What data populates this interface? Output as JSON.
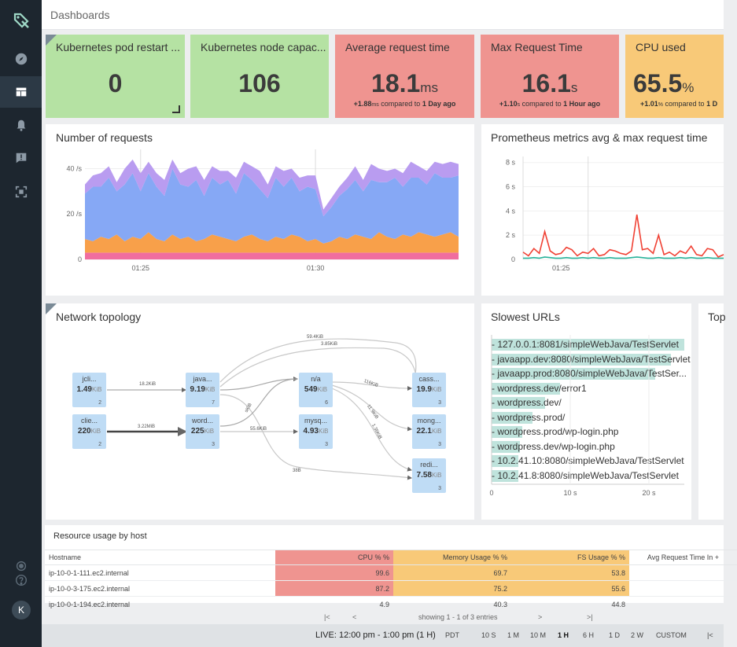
{
  "header": {
    "title": "Dashboards"
  },
  "sidebar": {
    "avatar_initial": "K"
  },
  "stats": [
    {
      "title": "Kubernetes pod restart ...",
      "value": "0",
      "unit": "",
      "delta": "",
      "delta_unit": "",
      "compare": "",
      "color": "#b5e2a3"
    },
    {
      "title": "Kubernetes node capac...",
      "value": "106",
      "unit": "",
      "delta": "",
      "delta_unit": "",
      "compare": "",
      "color": "#b5e2a3"
    },
    {
      "title": "Average request time",
      "value": "18.1",
      "unit": "ms",
      "delta": "+1.88",
      "delta_unit": "ms",
      "compare": "1 Day ago",
      "color": "#ef9490"
    },
    {
      "title": "Max Request Time",
      "value": "16.1",
      "unit": "s",
      "delta": "+1.10",
      "delta_unit": "s",
      "compare": "1 Hour ago",
      "color": "#ef9490"
    },
    {
      "title": "CPU used",
      "value": "65.5",
      "unit": "%",
      "delta": "+1.01",
      "delta_unit": "%",
      "compare": "1 D",
      "color": "#f8c978"
    }
  ],
  "compared_label": "compared to",
  "panels": {
    "requests": "Number of requests",
    "prometheus": "Prometheus metrics avg & max request time",
    "topology": "Network topology",
    "slowest": "Slowest URLs",
    "top": "Top",
    "resource": "Resource usage by host"
  },
  "chart_data": [
    {
      "type": "area",
      "title": "Number of requests",
      "x_ticks": [
        "01:25",
        "01:30"
      ],
      "y_ticks": [
        "40 /s",
        "20 /s",
        "0"
      ],
      "ylim": [
        0,
        45
      ],
      "series": [
        {
          "name": "pink",
          "color": "#f06d9f",
          "values": [
            3,
            3,
            3,
            3,
            3,
            3,
            3,
            3,
            3,
            3,
            3,
            3,
            3,
            3,
            3,
            3,
            3,
            3,
            3,
            3,
            3,
            3,
            3,
            3,
            3,
            3,
            3,
            3,
            3,
            3,
            3,
            3,
            3,
            3,
            3,
            3,
            3,
            3,
            3,
            3,
            3,
            3,
            3,
            3,
            3,
            3,
            3,
            3
          ]
        },
        {
          "name": "orange",
          "color": "#f8a04a",
          "values": [
            6,
            5,
            7,
            6,
            8,
            5,
            7,
            6,
            9,
            6,
            5,
            8,
            6,
            7,
            5,
            6,
            8,
            7,
            6,
            5,
            7,
            8,
            6,
            5,
            7,
            6,
            8,
            7,
            5,
            6,
            4,
            5,
            7,
            6,
            8,
            7,
            6,
            9,
            7,
            6,
            8,
            7,
            9,
            8,
            7,
            8,
            9,
            7
          ]
        },
        {
          "name": "blue",
          "color": "#86a8f5",
          "values": [
            20,
            24,
            22,
            27,
            19,
            25,
            28,
            21,
            26,
            23,
            20,
            29,
            24,
            22,
            27,
            19,
            25,
            23,
            26,
            21,
            28,
            24,
            22,
            19,
            26,
            23,
            25,
            20,
            24,
            22,
            12,
            15,
            18,
            22,
            24,
            20,
            26,
            22,
            24,
            27,
            21,
            26,
            24,
            22,
            28,
            25,
            24,
            27
          ]
        },
        {
          "name": "purple",
          "color": "#b99cf0",
          "values": [
            4,
            5,
            6,
            5,
            4,
            7,
            6,
            8,
            5,
            6,
            7,
            4,
            5,
            8,
            6,
            7,
            5,
            6,
            4,
            7,
            5,
            6,
            8,
            6,
            5,
            7,
            4,
            6,
            5,
            6,
            3,
            4,
            4,
            5,
            6,
            5,
            7,
            6,
            5,
            4,
            6,
            7,
            5,
            6,
            5,
            6,
            7,
            5
          ]
        }
      ]
    },
    {
      "type": "line",
      "title": "Prometheus metrics avg & max request time",
      "x_ticks": [
        "01:25"
      ],
      "y_ticks": [
        "8 s",
        "6 s",
        "4 s",
        "2 s",
        "0"
      ],
      "ylim": [
        0,
        8.5
      ],
      "series": [
        {
          "name": "max",
          "color": "#f04134",
          "values": [
            0.6,
            0.3,
            0.9,
            0.5,
            2.3,
            0.7,
            0.4,
            0.5,
            1.0,
            0.8,
            0.3,
            0.6,
            0.5,
            0.9,
            0.3,
            0.4,
            0.8,
            0.7,
            0.5,
            0.4,
            0.7,
            3.7,
            0.8,
            0.9,
            0.5,
            2.0,
            0.4,
            0.6,
            0.3,
            0.7,
            0.5,
            1.1,
            0.4,
            0.3,
            0.9,
            0.8,
            0.2,
            0.4
          ]
        },
        {
          "name": "avg",
          "color": "#28b39a",
          "values": [
            0.1,
            0.1,
            0.15,
            0.1,
            0.2,
            0.15,
            0.1,
            0.1,
            0.15,
            0.1,
            0.1,
            0.15,
            0.1,
            0.15,
            0.1,
            0.1,
            0.15,
            0.1,
            0.1,
            0.1,
            0.15,
            0.2,
            0.15,
            0.1,
            0.1,
            0.15,
            0.1,
            0.1,
            0.1,
            0.15,
            0.1,
            0.15,
            0.1,
            0.1,
            0.15,
            0.1,
            0.1,
            0.1
          ]
        }
      ]
    },
    {
      "type": "bar",
      "title": "Slowest URLs",
      "categories": [
        "127.0.0.1:8081/simpleWebJava/TestServlet",
        "javaapp.dev:8080/simpleWebJava/TestServlet",
        "javaapp.prod:8080/simpleWebJava/TestSer...",
        "wordpress.dev/error1",
        "wordpress.dev/",
        "wordpress.prod/",
        "wordpress.prod/wp-login.php",
        "wordpress.dev/wp-login.php",
        "10.2.41.10:8080/simpleWebJava/TestServlet",
        "10.2.41.8:8080/simpleWebJava/TestServlet"
      ],
      "values": [
        24.5,
        22.8,
        20.8,
        8.7,
        6.8,
        5.2,
        3.9,
        3.6,
        3.4,
        3.4
      ],
      "x_ticks": [
        "0",
        "10 s",
        "20 s"
      ],
      "xlim": [
        0,
        24.5
      ]
    }
  ],
  "topology": {
    "nodes": [
      {
        "name": "jcli...",
        "value": "1.49",
        "unit": "KiB",
        "count": "2"
      },
      {
        "name": "clie...",
        "value": "220",
        "unit": "KiB",
        "count": "2"
      },
      {
        "name": "java...",
        "value": "9.19",
        "unit": "KiB",
        "count": "7"
      },
      {
        "name": "word...",
        "value": "225",
        "unit": "KiB",
        "count": "3"
      },
      {
        "name": "n/a",
        "value": "549",
        "unit": "KiB",
        "count": "6"
      },
      {
        "name": "mysq...",
        "value": "4.93",
        "unit": "KiB",
        "count": "3"
      },
      {
        "name": "cass...",
        "value": "19.9",
        "unit": "KiB",
        "count": "3"
      },
      {
        "name": "mong...",
        "value": "22.1",
        "unit": "KiB",
        "count": "3"
      },
      {
        "name": "redi...",
        "value": "7.58",
        "unit": "KiB",
        "count": "3"
      }
    ],
    "edges": [
      "18.2KiB",
      "3.22MiB",
      "59.4KiB",
      "3.85KiB",
      "116KiB",
      "11.9KiB",
      "1.36KiB",
      "55.6KiB",
      "sKiB",
      "38B"
    ]
  },
  "resource_table": {
    "columns": [
      "Hostname",
      "CPU % %",
      "Memory Usage % %",
      "FS Usage % %",
      "Avg Request Time In +"
    ],
    "column_colors": [
      "",
      "#ef9490",
      "#f8c978",
      "#f8c978",
      ""
    ],
    "rows": [
      [
        "ip-10-0-1-111.ec2.internal",
        "99.6",
        "69.7",
        "53.8",
        ""
      ],
      [
        "ip-10-0-3-175.ec2.internal",
        "87.2",
        "75.2",
        "55.6",
        ""
      ],
      [
        "ip-10-0-1-194.ec2.internal",
        "4.9",
        "40.3",
        "44.8",
        ""
      ]
    ],
    "row_colors": [
      [
        "",
        "#ef9490",
        "#f8c978",
        "#f8c978",
        ""
      ],
      [
        "",
        "#ef9490",
        "#f8c978",
        "#f8c978",
        ""
      ],
      [
        "",
        "",
        "",
        "",
        ""
      ]
    ]
  },
  "pager": {
    "first": "|<",
    "prev": "<",
    "info": "showing 1 - 1 of 3 entries",
    "next": ">",
    "last": ">|"
  },
  "timebar": {
    "live": "LIVE: 12:00 pm - 1:00 pm (1 H)",
    "tz": "PDT",
    "ranges": [
      "10 S",
      "1 M",
      "10 M",
      "1 H",
      "6 H",
      "1 D",
      "2 W",
      "CUSTOM"
    ],
    "active": "1 H",
    "end_button": "|<"
  }
}
